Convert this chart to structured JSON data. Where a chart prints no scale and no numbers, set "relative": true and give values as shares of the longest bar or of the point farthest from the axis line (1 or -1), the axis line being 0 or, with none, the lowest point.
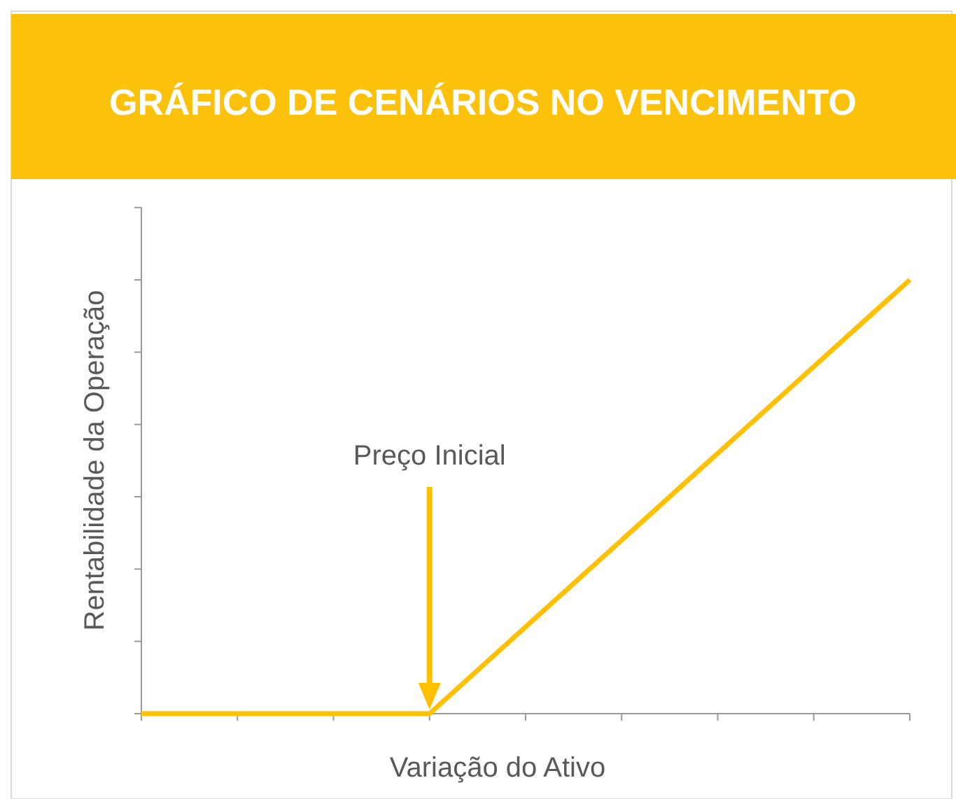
{
  "chart_data": {
    "type": "line",
    "title": "GRÁFICO DE CENÁRIOS NO VENCIMENTO",
    "xlabel": "Variação do Ativo",
    "ylabel": "Rentabilidade da Operação",
    "relative": true,
    "categories": [
      null,
      null,
      null,
      null,
      null,
      null,
      null,
      null,
      null
    ],
    "series": [
      {
        "color": "#ffc000",
        "values": [
          0,
          0,
          0,
          0,
          0.2,
          0.4,
          0.6,
          0.8,
          1
        ]
      }
    ],
    "annotations": [
      "Preço Inicial"
    ],
    "grid": false,
    "line_style": "solid"
  }
}
